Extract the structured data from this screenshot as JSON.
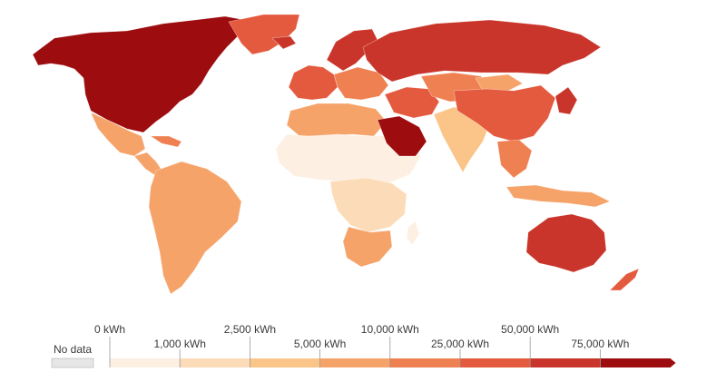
{
  "legend": {
    "no_data_label": "No data",
    "no_data_color": "#e6e6e6",
    "bins": [
      {
        "color": "#fdf0e3"
      },
      {
        "color": "#fcdcb8"
      },
      {
        "color": "#fbc589"
      },
      {
        "color": "#f6a36a"
      },
      {
        "color": "#ef8052"
      },
      {
        "color": "#e45a3e"
      },
      {
        "color": "#c9352a"
      },
      {
        "color": "#9d0c0e"
      }
    ],
    "upper_ticks": [
      "0 kWh",
      "2,500 kWh",
      "10,000 kWh",
      "50,000 kWh"
    ],
    "lower_ticks": [
      "1,000 kWh",
      "5,000 kWh",
      "25,000 kWh",
      "75,000 kWh"
    ]
  },
  "regions": [
    {
      "name": "north-america",
      "color": "#9d0c0e"
    },
    {
      "name": "greenland",
      "color": "#e45a3e"
    },
    {
      "name": "mexico",
      "color": "#f6a36a"
    },
    {
      "name": "central-america",
      "color": "#f6a36a"
    },
    {
      "name": "caribbean",
      "color": "#ef8052"
    },
    {
      "name": "south-america",
      "color": "#f6a36a"
    },
    {
      "name": "iceland",
      "color": "#c9352a"
    },
    {
      "name": "scandinavia",
      "color": "#c9352a"
    },
    {
      "name": "western-europe",
      "color": "#e45a3e"
    },
    {
      "name": "eastern-europe",
      "color": "#ef8052"
    },
    {
      "name": "russia",
      "color": "#c9352a"
    },
    {
      "name": "north-africa",
      "color": "#f6a36a"
    },
    {
      "name": "sahel-africa",
      "color": "#fdf0e3"
    },
    {
      "name": "central-africa",
      "color": "#fcdcb8"
    },
    {
      "name": "southern-africa",
      "color": "#f6a36a"
    },
    {
      "name": "madagascar",
      "color": "#fdf0e3"
    },
    {
      "name": "middle-east",
      "color": "#e45a3e"
    },
    {
      "name": "arabian-peninsula",
      "color": "#9d0c0e"
    },
    {
      "name": "central-asia",
      "color": "#ef8052"
    },
    {
      "name": "south-asia",
      "color": "#fbc589"
    },
    {
      "name": "china",
      "color": "#e45a3e"
    },
    {
      "name": "mongolia",
      "color": "#f6a36a"
    },
    {
      "name": "japan-korea",
      "color": "#c9352a"
    },
    {
      "name": "southeast-asia",
      "color": "#ef8052"
    },
    {
      "name": "indonesia",
      "color": "#f6a36a"
    },
    {
      "name": "australia",
      "color": "#c9352a"
    },
    {
      "name": "new-zealand",
      "color": "#e45a3e"
    }
  ]
}
